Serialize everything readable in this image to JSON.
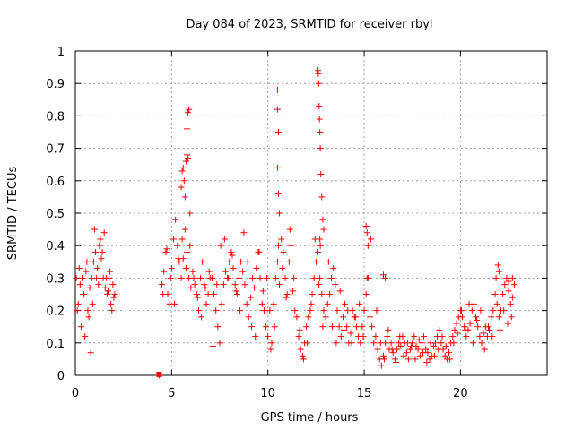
{
  "chart_data": {
    "type": "scatter",
    "title": "Day 084 of 2023, SRMTID for receiver rbyl",
    "xlabel": "GPS time / hours",
    "ylabel": "SRMTID / TECUs",
    "xlim": [
      0,
      24.5
    ],
    "ylim": [
      0,
      1
    ],
    "xticks": [
      0,
      5,
      10,
      15,
      20
    ],
    "xtick_labels": [
      "0",
      "5",
      "10",
      "15",
      "20"
    ],
    "yticks": [
      0,
      0.1,
      0.2,
      0.3,
      0.4,
      0.5,
      0.6,
      0.7,
      0.8,
      0.9,
      1
    ],
    "ytick_labels": [
      "0",
      "0.1",
      "0.2",
      "0.3",
      "0.4",
      "0.5",
      "0.6",
      "0.7",
      "0.8",
      "0.9",
      "1"
    ],
    "grid": true,
    "marker": "+",
    "color": "#ff0000",
    "series": [
      {
        "name": "SRMTID",
        "x": [
          0.05,
          0.15,
          0.25,
          0.35,
          0.45,
          0.55,
          0.65,
          0.75,
          0.85,
          0.95,
          1.05,
          1.15,
          1.25,
          1.35,
          1.45,
          1.55,
          1.65,
          1.75,
          1.85,
          1.95,
          2.05,
          0.1,
          0.3,
          0.5,
          0.7,
          0.9,
          1.1,
          1.3,
          1.5,
          1.7,
          1.9,
          0.2,
          0.4,
          0.6,
          0.8,
          1.0,
          1.2,
          1.4,
          1.6,
          1.8,
          2.0,
          4.35,
          4.5,
          4.6,
          4.7,
          4.8,
          4.9,
          5.0,
          5.1,
          5.2,
          5.3,
          5.4,
          5.5,
          5.6,
          5.7,
          5.8,
          5.9,
          6.0,
          6.1,
          6.2,
          6.3,
          6.4,
          6.5,
          6.6,
          6.7,
          6.8,
          6.9,
          7.0,
          4.55,
          4.75,
          4.95,
          5.15,
          5.35,
          5.55,
          5.75,
          5.95,
          6.15,
          6.35,
          6.55,
          6.75,
          6.95,
          5.5,
          5.55,
          5.6,
          5.65,
          5.7,
          5.75,
          5.8,
          5.85,
          5.9,
          5.95,
          5.8,
          5.85,
          7.1,
          7.2,
          7.3,
          7.4,
          7.5,
          7.6,
          7.7,
          7.8,
          7.9,
          8.0,
          8.1,
          8.2,
          8.3,
          8.4,
          8.5,
          8.6,
          8.7,
          8.8,
          8.9,
          9.0,
          9.1,
          9.2,
          9.3,
          9.4,
          9.5,
          9.6,
          9.7,
          9.8,
          9.9,
          10.0,
          7.15,
          7.35,
          7.55,
          7.75,
          7.95,
          8.15,
          8.35,
          8.55,
          8.75,
          8.95,
          9.15,
          9.35,
          9.55,
          9.75,
          9.95,
          10.1,
          10.2,
          10.3,
          10.4,
          10.5,
          10.6,
          10.7,
          10.8,
          10.9,
          11.0,
          11.1,
          11.2,
          11.3,
          11.4,
          11.5,
          10.15,
          10.35,
          10.55,
          10.75,
          10.95,
          11.15,
          11.35,
          10.5,
          10.5,
          10.55,
          10.5,
          10.55,
          10.6,
          11.6,
          11.7,
          11.8,
          11.9,
          12.0,
          12.1,
          12.2,
          12.3,
          12.4,
          12.5,
          12.6,
          12.7,
          12.8,
          12.9,
          13.0,
          11.65,
          11.85,
          12.05,
          12.25,
          12.45,
          12.65,
          12.85,
          12.6,
          12.62,
          12.64,
          12.66,
          12.68,
          12.7,
          12.72,
          12.75,
          12.8,
          12.85,
          12.9,
          12.7,
          12.72,
          13.1,
          13.2,
          13.3,
          13.4,
          13.5,
          13.6,
          13.7,
          13.8,
          13.9,
          14.0,
          14.1,
          14.2,
          14.3,
          14.4,
          14.5,
          14.6,
          14.7,
          14.8,
          14.9,
          15.0,
          15.1,
          15.2,
          15.3,
          15.4,
          15.5,
          13.15,
          13.35,
          13.55,
          13.75,
          13.95,
          14.15,
          14.35,
          14.55,
          14.75,
          14.95,
          15.15,
          15.35,
          15.1,
          15.15,
          15.2,
          15.6,
          15.7,
          15.8,
          15.9,
          16.0,
          16.1,
          16.2,
          16.3,
          16.4,
          16.5,
          16.6,
          16.7,
          16.8,
          16.9,
          17.0,
          17.1,
          17.2,
          17.3,
          17.4,
          17.5,
          17.6,
          17.7,
          17.8,
          17.9,
          18.0,
          18.1,
          18.2,
          18.3,
          18.4,
          18.5,
          18.6,
          18.7,
          18.8,
          18.9,
          19.0,
          19.1,
          19.2,
          19.3,
          19.4,
          19.5,
          15.65,
          15.85,
          16.05,
          16.25,
          16.45,
          16.65,
          16.85,
          17.05,
          17.25,
          17.45,
          17.65,
          17.85,
          18.05,
          18.25,
          18.45,
          18.65,
          18.85,
          19.05,
          19.25,
          19.45,
          16.0,
          16.1,
          19.6,
          19.7,
          19.8,
          19.9,
          20.0,
          20.1,
          20.2,
          20.3,
          20.4,
          20.5,
          20.6,
          20.7,
          20.8,
          20.9,
          21.0,
          21.1,
          21.2,
          21.3,
          21.4,
          21.5,
          21.6,
          21.7,
          21.8,
          21.9,
          22.0,
          22.1,
          22.2,
          22.3,
          22.4,
          22.5,
          22.6,
          22.7,
          22.8,
          19.65,
          19.85,
          20.05,
          20.25,
          20.45,
          20.65,
          20.85,
          21.05,
          21.25,
          21.45,
          21.65,
          21.85,
          22.05,
          22.25,
          22.45,
          22.65,
          21.95,
          22.0,
          22.5,
          22.7
        ],
        "y": [
          0.3,
          0.22,
          0.28,
          0.3,
          0.25,
          0.32,
          0.2,
          0.27,
          0.3,
          0.35,
          0.38,
          0.33,
          0.4,
          0.36,
          0.3,
          0.27,
          0.25,
          0.3,
          0.22,
          0.28,
          0.25,
          0.2,
          0.15,
          0.12,
          0.18,
          0.22,
          0.3,
          0.42,
          0.44,
          0.26,
          0.2,
          0.33,
          0.25,
          0.35,
          0.07,
          0.45,
          0.28,
          0.38,
          0.3,
          0.32,
          0.24,
          0.0,
          0.28,
          0.32,
          0.38,
          0.25,
          0.22,
          0.33,
          0.42,
          0.48,
          0.4,
          0.35,
          0.3,
          0.36,
          0.45,
          0.38,
          0.3,
          0.27,
          0.32,
          0.28,
          0.25,
          0.2,
          0.3,
          0.35,
          0.28,
          0.22,
          0.25,
          0.3,
          0.25,
          0.39,
          0.3,
          0.22,
          0.36,
          0.42,
          0.33,
          0.4,
          0.3,
          0.24,
          0.18,
          0.27,
          0.32,
          0.58,
          0.63,
          0.64,
          0.6,
          0.55,
          0.66,
          0.76,
          0.81,
          0.82,
          0.5,
          0.68,
          0.67,
          0.3,
          0.25,
          0.2,
          0.15,
          0.1,
          0.22,
          0.28,
          0.32,
          0.3,
          0.35,
          0.38,
          0.33,
          0.28,
          0.25,
          0.3,
          0.35,
          0.32,
          0.28,
          0.22,
          0.18,
          0.24,
          0.3,
          0.27,
          0.33,
          0.38,
          0.3,
          0.22,
          0.2,
          0.15,
          0.12,
          0.09,
          0.28,
          0.4,
          0.42,
          0.3,
          0.37,
          0.26,
          0.2,
          0.44,
          0.35,
          0.15,
          0.12,
          0.38,
          0.26,
          0.3,
          0.2,
          0.1,
          0.22,
          0.3,
          0.35,
          0.28,
          0.42,
          0.38,
          0.3,
          0.25,
          0.35,
          0.4,
          0.26,
          0.2,
          0.18,
          0.08,
          0.15,
          0.4,
          0.33,
          0.24,
          0.45,
          0.3,
          0.88,
          0.82,
          0.75,
          0.64,
          0.56,
          0.5,
          0.12,
          0.08,
          0.06,
          0.1,
          0.15,
          0.18,
          0.2,
          0.25,
          0.3,
          0.35,
          0.38,
          0.3,
          0.25,
          0.2,
          0.18,
          0.14,
          0.05,
          0.1,
          0.22,
          0.42,
          0.28,
          0.15,
          0.94,
          0.93,
          0.9,
          0.83,
          0.79,
          0.75,
          0.7,
          0.62,
          0.55,
          0.48,
          0.45,
          0.42,
          0.4,
          0.22,
          0.25,
          0.3,
          0.33,
          0.28,
          0.2,
          0.15,
          0.12,
          0.18,
          0.22,
          0.15,
          0.1,
          0.13,
          0.2,
          0.18,
          0.15,
          0.12,
          0.1,
          0.15,
          0.2,
          0.25,
          0.3,
          0.18,
          0.15,
          0.1,
          0.35,
          0.15,
          0.1,
          0.26,
          0.14,
          0.2,
          0.1,
          0.18,
          0.22,
          0.12,
          0.3,
          0.42,
          0.46,
          0.44,
          0.4,
          0.12,
          0.08,
          0.05,
          0.03,
          0.06,
          0.1,
          0.12,
          0.08,
          0.1,
          0.07,
          0.05,
          0.08,
          0.1,
          0.09,
          0.12,
          0.1,
          0.07,
          0.05,
          0.08,
          0.1,
          0.12,
          0.09,
          0.08,
          0.06,
          0.1,
          0.12,
          0.08,
          0.07,
          0.05,
          0.06,
          0.09,
          0.1,
          0.12,
          0.14,
          0.1,
          0.08,
          0.06,
          0.05,
          0.07,
          0.1,
          0.2,
          0.1,
          0.05,
          0.14,
          0.08,
          0.04,
          0.12,
          0.06,
          0.1,
          0.09,
          0.05,
          0.11,
          0.07,
          0.04,
          0.1,
          0.06,
          0.08,
          0.12,
          0.09,
          0.05,
          0.31,
          0.3,
          0.12,
          0.14,
          0.16,
          0.18,
          0.2,
          0.18,
          0.15,
          0.12,
          0.14,
          0.16,
          0.2,
          0.22,
          0.18,
          0.15,
          0.12,
          0.1,
          0.13,
          0.15,
          0.12,
          0.14,
          0.18,
          0.2,
          0.25,
          0.22,
          0.18,
          0.2,
          0.25,
          0.28,
          0.3,
          0.26,
          0.22,
          0.24,
          0.28,
          0.1,
          0.13,
          0.2,
          0.14,
          0.22,
          0.1,
          0.17,
          0.2,
          0.08,
          0.15,
          0.12,
          0.3,
          0.14,
          0.2,
          0.16,
          0.18,
          0.34,
          0.32,
          0.29,
          0.3
        ]
      }
    ],
    "square_markers": [
      {
        "x": 4.35,
        "y": 0.0
      }
    ]
  }
}
